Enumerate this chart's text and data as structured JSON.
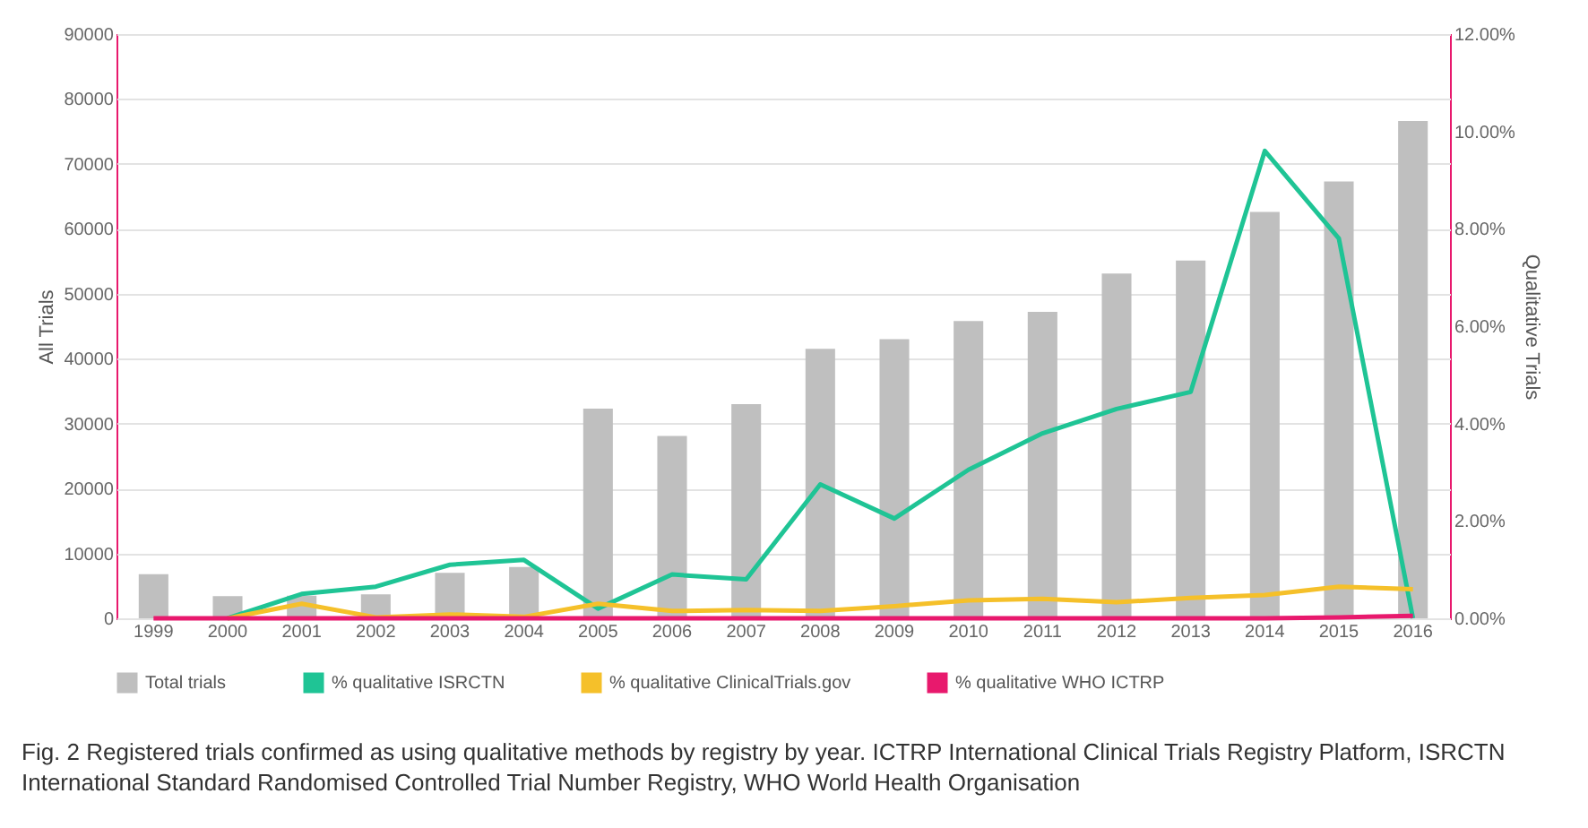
{
  "chart_data": {
    "type": "bar",
    "xlabel": null,
    "ylabel": "All Trials",
    "y2label": "Qualitative Trials",
    "categories": [
      "1999",
      "2000",
      "2001",
      "2002",
      "2003",
      "2004",
      "2005",
      "2006",
      "2007",
      "2008",
      "2009",
      "2010",
      "2011",
      "2012",
      "2013",
      "2014",
      "2015",
      "2016"
    ],
    "series": [
      {
        "name": "Total trials",
        "color": "#bfbfbf",
        "values": [
          6800,
          3400,
          3500,
          3700,
          7000,
          7900,
          32300,
          28100,
          33000,
          41500,
          43000,
          45800,
          47200,
          53100,
          55100,
          62600,
          67300,
          76600
        ]
      },
      {
        "name": "% qualitative ISRCTN",
        "type": "line",
        "axis": "y2",
        "color": "#1fc495",
        "values": [
          null,
          0,
          0.5,
          0.65,
          1.1,
          1.2,
          0.2,
          0.9,
          0.8,
          2.75,
          2.05,
          3.05,
          3.8,
          4.3,
          4.65,
          9.6,
          7.8,
          0
        ]
      },
      {
        "name": "% qualitative ClinicalTrials.gov",
        "type": "line",
        "axis": "y2",
        "color": "#f5c02a",
        "values": [
          null,
          0,
          0.3,
          0.02,
          0.08,
          0.03,
          0.3,
          0.15,
          0.17,
          0.15,
          0.25,
          0.37,
          0.4,
          0.33,
          0.42,
          0.48,
          0.65,
          0.6
        ]
      },
      {
        "name": "% qualitative WHO ICTRP",
        "type": "line",
        "axis": "y2",
        "color": "#e8196d",
        "values": [
          0,
          0,
          0,
          0,
          0,
          0,
          0,
          0,
          0,
          0,
          0,
          0,
          0,
          0,
          0,
          0,
          0.02,
          0.05
        ]
      }
    ],
    "ylim": [
      0,
      90000
    ],
    "yticks": [
      0,
      10000,
      20000,
      30000,
      40000,
      50000,
      60000,
      70000,
      80000,
      90000
    ],
    "y2lim": [
      0,
      12
    ],
    "y2ticks": [
      {
        "value": 0,
        "label": "0.00%"
      },
      {
        "value": 2,
        "label": "2.00%"
      },
      {
        "value": 4,
        "label": "4.00%"
      },
      {
        "value": 6,
        "label": "6.00%"
      },
      {
        "value": 8,
        "label": "8.00%"
      },
      {
        "value": 10,
        "label": "10.00%"
      },
      {
        "value": 12,
        "label": "12.00%"
      }
    ],
    "grid": "y",
    "legend": "bottom",
    "marker": "none",
    "line_style": "solid",
    "annotations": [
      "Fig. 2 Registered trials confirmed as using qualitative methods by registry by year. ICTRP International Clinical Trials Registry Platform, ISRCTN International Standard Randomised Controlled Trial Number Registry, WHO World Health Organisation"
    ]
  }
}
